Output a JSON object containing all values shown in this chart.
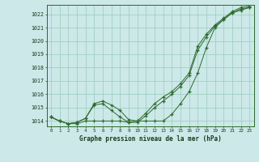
{
  "title": "Graphe pression niveau de la mer (hPa)",
  "background_color": "#cce8e8",
  "grid_color": "#99ccbb",
  "line_color": "#2d6a2d",
  "x_labels": [
    "0",
    "1",
    "2",
    "3",
    "4",
    "5",
    "6",
    "7",
    "8",
    "9",
    "10",
    "11",
    "12",
    "13",
    "14",
    "15",
    "16",
    "17",
    "18",
    "19",
    "20",
    "21",
    "22",
    "23"
  ],
  "ylim": [
    1013.6,
    1022.7
  ],
  "yticks": [
    1014,
    1015,
    1016,
    1017,
    1018,
    1019,
    1020,
    1021,
    1022
  ],
  "series1": [
    1014.3,
    1014.0,
    1013.8,
    1013.8,
    1014.0,
    1014.0,
    1014.0,
    1014.0,
    1014.0,
    1013.9,
    1014.0,
    1014.0,
    1014.0,
    1014.0,
    1014.5,
    1015.3,
    1016.2,
    1017.6,
    1019.5,
    1021.0,
    1021.6,
    1022.1,
    1022.3,
    1022.5
  ],
  "series2": [
    1014.3,
    1014.0,
    1013.8,
    1013.9,
    1014.2,
    1015.2,
    1015.3,
    1014.8,
    1014.3,
    1013.9,
    1013.9,
    1014.4,
    1015.0,
    1015.5,
    1016.0,
    1016.6,
    1017.4,
    1019.3,
    1020.3,
    1021.1,
    1021.6,
    1022.1,
    1022.4,
    1022.5
  ],
  "series3": [
    1014.3,
    1014.0,
    1013.8,
    1013.9,
    1014.2,
    1015.3,
    1015.5,
    1015.2,
    1014.8,
    1014.1,
    1014.0,
    1014.6,
    1015.3,
    1015.8,
    1016.2,
    1016.8,
    1017.6,
    1019.6,
    1020.5,
    1021.2,
    1021.7,
    1022.2,
    1022.5,
    1022.6
  ]
}
